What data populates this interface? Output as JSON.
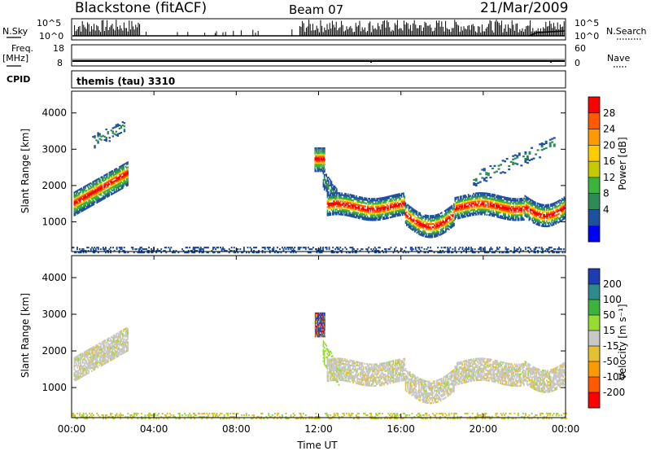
{
  "header": {
    "title": "Blackstone (fitACF)",
    "beam": "Beam 07",
    "date": "21/Mar/2009"
  },
  "top_panels": {
    "nsky_label": "N.Sky",
    "nsearch_label": "N.Search",
    "count_ticks": [
      "10^5",
      "10^0"
    ],
    "freq_label_1": "Freq.",
    "freq_label_2": "[MHz]",
    "freq_ticks": [
      "18",
      "8"
    ],
    "nave_label": "Nave",
    "nave_ticks": [
      "60",
      "0"
    ],
    "cpid_label": "CPID",
    "cpid_value": "themis (tau) 3310"
  },
  "power_panel": {
    "ylabel": "Slant Range [km]",
    "yticks": [
      "4000",
      "3000",
      "2000",
      "1000"
    ],
    "colorbar_label": "Power [dB]",
    "colorbar_ticks": [
      "28",
      "24",
      "20",
      "16",
      "12",
      "8",
      "4"
    ],
    "colorbar_colors": [
      "#ff0000",
      "#ff5a00",
      "#ff9900",
      "#ffcc00",
      "#c8c800",
      "#3cb43c",
      "#2e8b57",
      "#1e50a0",
      "#0000ff"
    ]
  },
  "velocity_panel": {
    "ylabel": "Slant Range [km]",
    "yticks": [
      "4000",
      "3000",
      "2000",
      "1000"
    ],
    "colorbar_label": "Velocity [m s⁻¹]",
    "colorbar_ticks": [
      "200",
      "100",
      "50",
      "15",
      "-15",
      "-50",
      "-100",
      "-200"
    ],
    "colorbar_colors": [
      "#1e3cb4",
      "#2e8b8b",
      "#3cb43c",
      "#96dc32",
      "#c8c8c8",
      "#e6c032",
      "#ff9900",
      "#ff5a00",
      "#ff0000"
    ]
  },
  "x_axis": {
    "label": "Time UT",
    "ticks": [
      "00:00",
      "04:00",
      "08:00",
      "12:00",
      "16:00",
      "20:00",
      "00:00"
    ]
  },
  "chart_data": [
    {
      "type": "heatmap",
      "quantity": "Power [dB]",
      "x_label": "Time UT",
      "y_label": "Slant Range [km]",
      "xlim_hours": [
        0,
        24
      ],
      "ylim_km": [
        180,
        4600
      ],
      "clim": [
        0,
        30
      ],
      "features": [
        {
          "t_start": 0.1,
          "t_end": 2.7,
          "range_start_km": 1200,
          "range_end_km": 2700,
          "peak_db": 24
        },
        {
          "t_start": 11.8,
          "t_end": 12.3,
          "range_start_km": 2400,
          "range_end_km": 3000,
          "peak_db": 26
        },
        {
          "t_start": 12.3,
          "t_end": 24.0,
          "range_start_km": 600,
          "range_end_km": 2000,
          "peak_db": 28
        },
        {
          "t_start": 0.0,
          "t_end": 24.0,
          "range_start_km": 180,
          "range_end_km": 300,
          "peak_db": 6
        }
      ]
    },
    {
      "type": "heatmap",
      "quantity": "Velocity [m s-1]",
      "x_label": "Time UT",
      "y_label": "Slant Range [km]",
      "xlim_hours": [
        0,
        24
      ],
      "ylim_km": [
        180,
        4600
      ],
      "clim": [
        -250,
        250
      ],
      "features": [
        {
          "t_start": 0.1,
          "t_end": 2.7,
          "range_start_km": 1200,
          "range_end_km": 2700,
          "typical_velocity": -15
        },
        {
          "t_start": 11.8,
          "t_end": 12.3,
          "range_start_km": 2400,
          "range_end_km": 3100,
          "typical_velocity": 150
        },
        {
          "t_start": 12.3,
          "t_end": 24.0,
          "range_start_km": 600,
          "range_end_km": 2000,
          "typical_velocity": 0
        },
        {
          "t_start": 0.0,
          "t_end": 24.0,
          "range_start_km": 180,
          "range_end_km": 300,
          "typical_velocity": -30
        }
      ]
    }
  ]
}
